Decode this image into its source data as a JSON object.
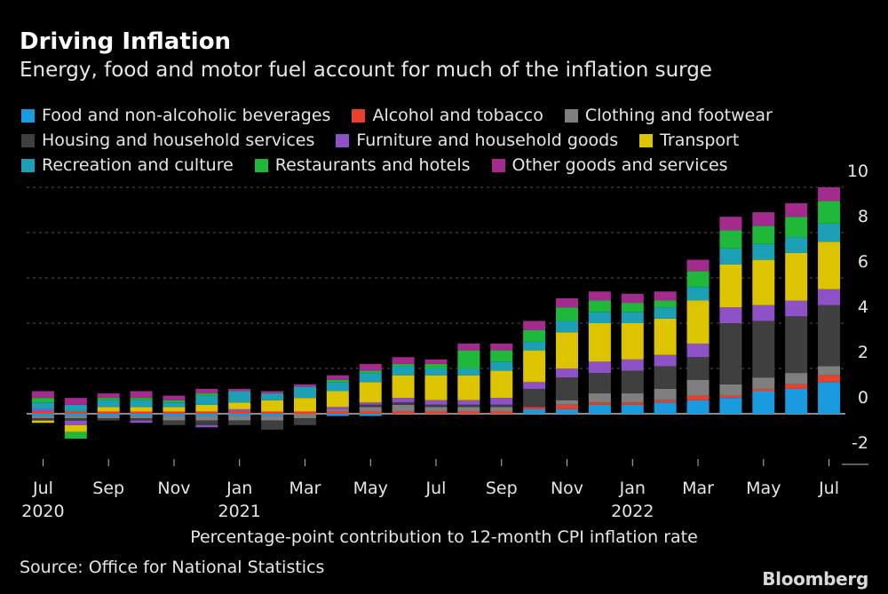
{
  "title": "Driving Inflation",
  "subtitle": "Energy, food and motor fuel account for much of the inflation surge",
  "xcaption": "Percentage-point contribution to 12-month CPI inflation rate",
  "source": "Source: Office for National Statistics",
  "brand": "Bloomberg",
  "legend": [
    [
      {
        "name": "Food and non-alcoholic beverages",
        "color": "#1a9be0"
      },
      {
        "name": "Alcohol and tobacco",
        "color": "#e8402b"
      },
      {
        "name": "Clothing and footwear",
        "color": "#7f7f7f"
      }
    ],
    [
      {
        "name": "Housing and household services",
        "color": "#3f3f3f"
      },
      {
        "name": "Furniture and household goods",
        "color": "#8e52c7"
      },
      {
        "name": "Transport",
        "color": "#dcc400"
      }
    ],
    [
      {
        "name": "Recreation and culture",
        "color": "#1ba0b5"
      },
      {
        "name": "Restaurants and hotels",
        "color": "#20b83a"
      },
      {
        "name": "Other goods and services",
        "color": "#a52a8e"
      }
    ]
  ],
  "chart_data": {
    "type": "bar",
    "stacked": true,
    "ylim": [
      -2,
      10
    ],
    "yticks": [
      10,
      8,
      6,
      4,
      2,
      0,
      -2
    ],
    "grid": true,
    "categories": [
      "Jul 2020",
      "Aug 2020",
      "Sep 2020",
      "Oct 2020",
      "Nov 2020",
      "Dec 2020",
      "Jan 2021",
      "Feb 2021",
      "Mar 2021",
      "Apr 2021",
      "May 2021",
      "Jun 2021",
      "Jul 2021",
      "Aug 2021",
      "Sep 2021",
      "Oct 2021",
      "Nov 2021",
      "Dec 2021",
      "Jan 2022",
      "Feb 2022",
      "Mar 2022",
      "Apr 2022",
      "May 2022",
      "Jun 2022",
      "Jul 2022"
    ],
    "xticks": [
      {
        "label": "Jul",
        "year": "2020",
        "index": 0
      },
      {
        "label": "Sep",
        "year": "",
        "index": 2
      },
      {
        "label": "Nov",
        "year": "",
        "index": 4
      },
      {
        "label": "Jan",
        "year": "2021",
        "index": 6
      },
      {
        "label": "Mar",
        "year": "",
        "index": 8
      },
      {
        "label": "May",
        "year": "",
        "index": 10
      },
      {
        "label": "Jul",
        "year": "",
        "index": 12
      },
      {
        "label": "Sep",
        "year": "",
        "index": 14
      },
      {
        "label": "Nov",
        "year": "",
        "index": 16
      },
      {
        "label": "Jan",
        "year": "2022",
        "index": 18
      },
      {
        "label": "Mar",
        "year": "",
        "index": 20
      },
      {
        "label": "May",
        "year": "",
        "index": 22
      },
      {
        "label": "Jul",
        "year": "",
        "index": 24
      }
    ],
    "series": [
      {
        "name": "Food and non-alcoholic beverages",
        "color": "#1a9be0",
        "values": [
          -0.1,
          -0.1,
          -0.1,
          -0.1,
          -0.1,
          -0.1,
          -0.1,
          -0.1,
          0.0,
          -0.1,
          -0.1,
          0.0,
          0.0,
          0.0,
          0.0,
          0.2,
          0.2,
          0.4,
          0.4,
          0.5,
          0.6,
          0.7,
          1.0,
          1.1,
          1.4
        ]
      },
      {
        "name": "Alcohol and tobacco",
        "color": "#e8402b",
        "values": [
          0.1,
          0.1,
          0.1,
          0.1,
          0.1,
          0.1,
          0.1,
          0.1,
          0.1,
          0.1,
          0.1,
          0.1,
          0.1,
          0.1,
          0.1,
          0.1,
          0.2,
          0.1,
          0.1,
          0.1,
          0.2,
          0.1,
          0.1,
          0.2,
          0.3
        ]
      },
      {
        "name": "Clothing and footwear",
        "color": "#7f7f7f",
        "values": [
          -0.1,
          -0.1,
          -0.1,
          -0.1,
          -0.2,
          -0.2,
          -0.2,
          -0.2,
          -0.2,
          0.1,
          0.2,
          0.3,
          0.2,
          0.2,
          0.2,
          0.0,
          0.2,
          0.4,
          0.4,
          0.5,
          0.7,
          0.5,
          0.5,
          0.5,
          0.4
        ]
      },
      {
        "name": "Housing and household services",
        "color": "#3f3f3f",
        "values": [
          -0.1,
          -0.1,
          -0.1,
          -0.1,
          -0.2,
          -0.2,
          -0.2,
          -0.4,
          -0.3,
          0.0,
          0.1,
          0.1,
          0.1,
          0.1,
          0.1,
          0.8,
          1.0,
          0.9,
          1.0,
          1.0,
          1.0,
          2.7,
          2.5,
          2.5,
          2.7
        ]
      },
      {
        "name": "Furniture and household goods",
        "color": "#8e52c7",
        "values": [
          0.1,
          -0.2,
          0.0,
          -0.1,
          0.0,
          -0.1,
          0.1,
          0.0,
          0.0,
          0.1,
          0.1,
          0.2,
          0.2,
          0.2,
          0.3,
          0.3,
          0.4,
          0.5,
          0.5,
          0.5,
          0.6,
          0.7,
          0.7,
          0.7,
          0.7
        ]
      },
      {
        "name": "Transport",
        "color": "#dcc400",
        "values": [
          -0.1,
          -0.3,
          0.2,
          0.2,
          0.2,
          0.3,
          0.3,
          0.5,
          0.6,
          0.7,
          0.9,
          1.0,
          1.1,
          1.1,
          1.2,
          1.4,
          1.6,
          1.7,
          1.6,
          1.6,
          1.9,
          1.9,
          2.0,
          2.1,
          2.1
        ]
      },
      {
        "name": "Recreation and culture",
        "color": "#1ba0b5",
        "values": [
          0.3,
          0.3,
          0.3,
          0.3,
          0.2,
          0.4,
          0.5,
          0.3,
          0.5,
          0.4,
          0.4,
          0.4,
          0.3,
          0.3,
          0.4,
          0.4,
          0.5,
          0.5,
          0.5,
          0.5,
          0.6,
          0.7,
          0.7,
          0.7,
          0.8
        ]
      },
      {
        "name": "Restaurants and hotels",
        "color": "#20b83a",
        "values": [
          0.2,
          -0.3,
          0.1,
          0.1,
          0.1,
          0.1,
          0.0,
          0.0,
          0.0,
          0.1,
          0.1,
          0.1,
          0.2,
          0.8,
          0.5,
          0.5,
          0.6,
          0.5,
          0.4,
          0.3,
          0.7,
          0.8,
          0.8,
          0.9,
          1.0
        ]
      },
      {
        "name": "Other goods and services",
        "color": "#a52a8e",
        "values": [
          0.3,
          0.3,
          0.2,
          0.3,
          0.2,
          0.2,
          0.1,
          0.1,
          0.1,
          0.2,
          0.3,
          0.3,
          0.2,
          0.3,
          0.3,
          0.4,
          0.4,
          0.4,
          0.4,
          0.4,
          0.5,
          0.6,
          0.6,
          0.6,
          0.6
        ]
      }
    ]
  }
}
